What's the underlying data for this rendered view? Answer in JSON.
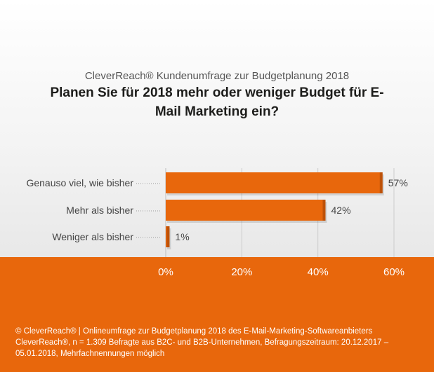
{
  "header": {
    "subtitle": "CleverReach® Kundenumfrage zur Budgetplanung 2018",
    "title": "Planen Sie für 2018 mehr oder weniger Budget für E-Mail Marketing ein?"
  },
  "footer": {
    "note": "© CleverReach® | Onlineumfrage zur Budgetplanung 2018 des E-Mail-Marketing-Softwareanbieters CleverReach®, n = 1.309 Befragte aus B2C- und B2B-Unternehmen, Befragungszeitraum: 20.12.2017 – 05.01.2018, Mehrfachnennungen möglich"
  },
  "colors": {
    "bar": "#e8670c",
    "bar_shadow": "#9a4208",
    "gridline": "#cccccc",
    "footer_bg": "#e8670c"
  },
  "chart_data": {
    "type": "bar",
    "orientation": "horizontal",
    "categories": [
      "Genauso viel, wie bisher",
      "Mehr als bisher",
      "Weniger als bisher"
    ],
    "values": [
      57,
      42,
      1
    ],
    "value_labels": [
      "57%",
      "42%",
      "1%"
    ],
    "xlim": [
      0,
      60
    ],
    "xticks": [
      0,
      20,
      40,
      60
    ],
    "xtick_labels": [
      "0%",
      "20%",
      "40%",
      "60%"
    ],
    "grid": true,
    "title": "Planen Sie für 2018 mehr oder weniger Budget für E-Mail Marketing ein?",
    "subtitle": "CleverReach® Kundenumfrage zur Budgetplanung 2018"
  }
}
